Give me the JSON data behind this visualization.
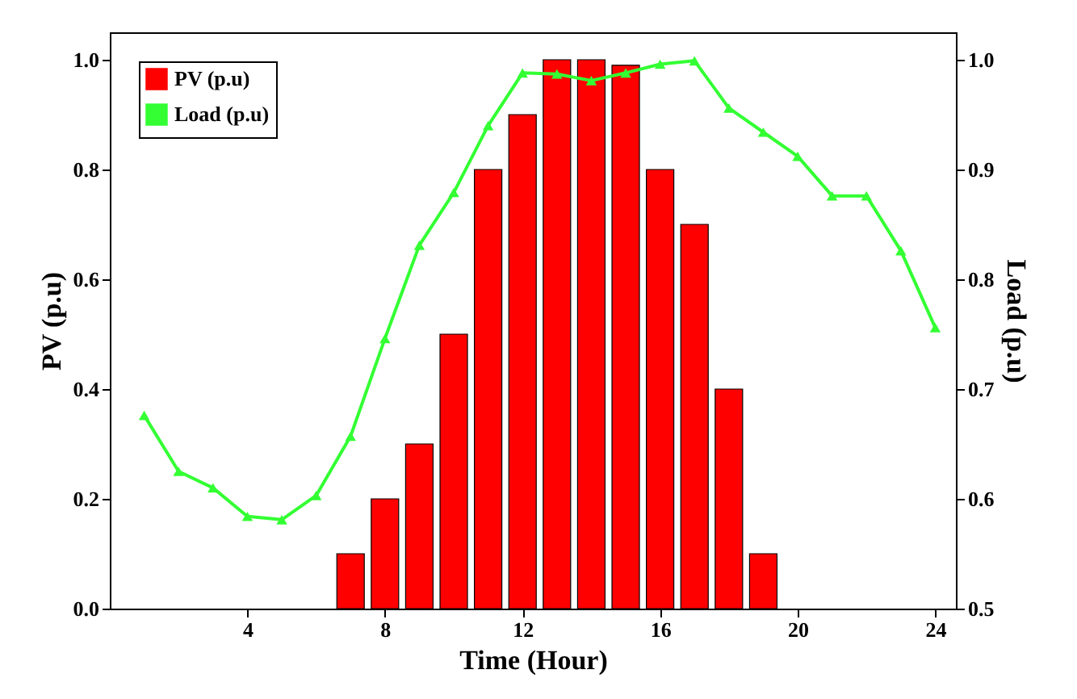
{
  "chart_data": {
    "type": "bar",
    "xlabel": "Time (Hour)",
    "ylabel": "PV (p.u)",
    "y2label": "Load (p.u)",
    "x": [
      1,
      2,
      3,
      4,
      5,
      6,
      7,
      8,
      9,
      10,
      11,
      12,
      13,
      14,
      15,
      16,
      17,
      18,
      19,
      20,
      21,
      22,
      23,
      24
    ],
    "series": [
      {
        "name": "PV (p.u)",
        "color": "#ff0000",
        "values": [
          null,
          null,
          null,
          null,
          null,
          null,
          0.1,
          0.2,
          0.3,
          0.5,
          0.8,
          0.9,
          1.0,
          1.0,
          0.99,
          0.8,
          0.7,
          0.4,
          0.1,
          null,
          null,
          null,
          null,
          null
        ]
      },
      {
        "name": "Load (p.u)",
        "type": "line",
        "axis": "y2",
        "color": "#33ff33",
        "marker": "triangle",
        "line_style": "solid",
        "values": [
          0.676,
          0.625,
          0.61,
          0.584,
          0.581,
          0.603,
          0.657,
          0.746,
          0.831,
          0.879,
          0.94,
          0.988,
          0.987,
          0.981,
          0.988,
          0.996,
          0.999,
          0.956,
          0.934,
          0.912,
          0.876,
          0.876,
          0.826,
          0.756
        ]
      }
    ],
    "xlim": [
      0,
      24.6
    ],
    "xticks": [
      4,
      8,
      12,
      16,
      20,
      24
    ],
    "ylim": [
      0,
      1.05
    ],
    "yticks": [
      {
        "value": 0,
        "label": "0.0"
      },
      0.2,
      0.4,
      0.6,
      0.8,
      {
        "value": 1,
        "label": "1.0"
      }
    ],
    "y2lim": [
      0.5,
      1.025
    ],
    "y2ticks": [
      0.5,
      0.6,
      0.7,
      0.8,
      0.9,
      {
        "value": 1,
        "label": "1.0"
      }
    ],
    "legend": "top left",
    "grid": false
  }
}
